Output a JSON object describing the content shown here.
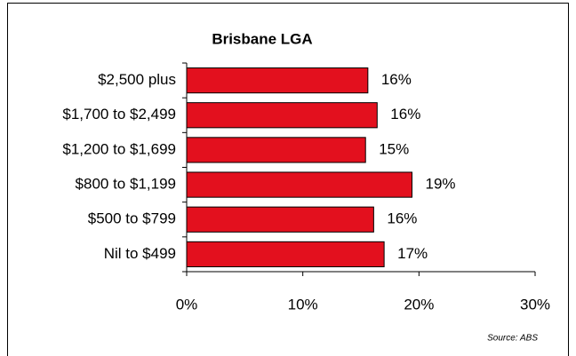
{
  "chart_data": {
    "type": "barh",
    "title": "Brisbane LGA",
    "categories": [
      "$2,500 plus",
      "$1,700 to $2,499",
      "$1,200 to $1,699",
      "$800 to $1,199",
      "$500 to $799",
      "Nil to $499"
    ],
    "values": [
      15.6,
      16.4,
      15.4,
      19.4,
      16.1,
      17.0
    ],
    "value_labels": [
      "16%",
      "16%",
      "15%",
      "19%",
      "16%",
      "17%"
    ],
    "color": "#e3101e",
    "xlim": [
      0,
      30
    ],
    "xticks": [
      {
        "value": 0,
        "label": "0%"
      },
      {
        "value": 10,
        "label": "10%"
      },
      {
        "value": 20,
        "label": "20%"
      },
      {
        "value": 30,
        "label": "30%"
      }
    ],
    "source": "Source:  ABS"
  }
}
